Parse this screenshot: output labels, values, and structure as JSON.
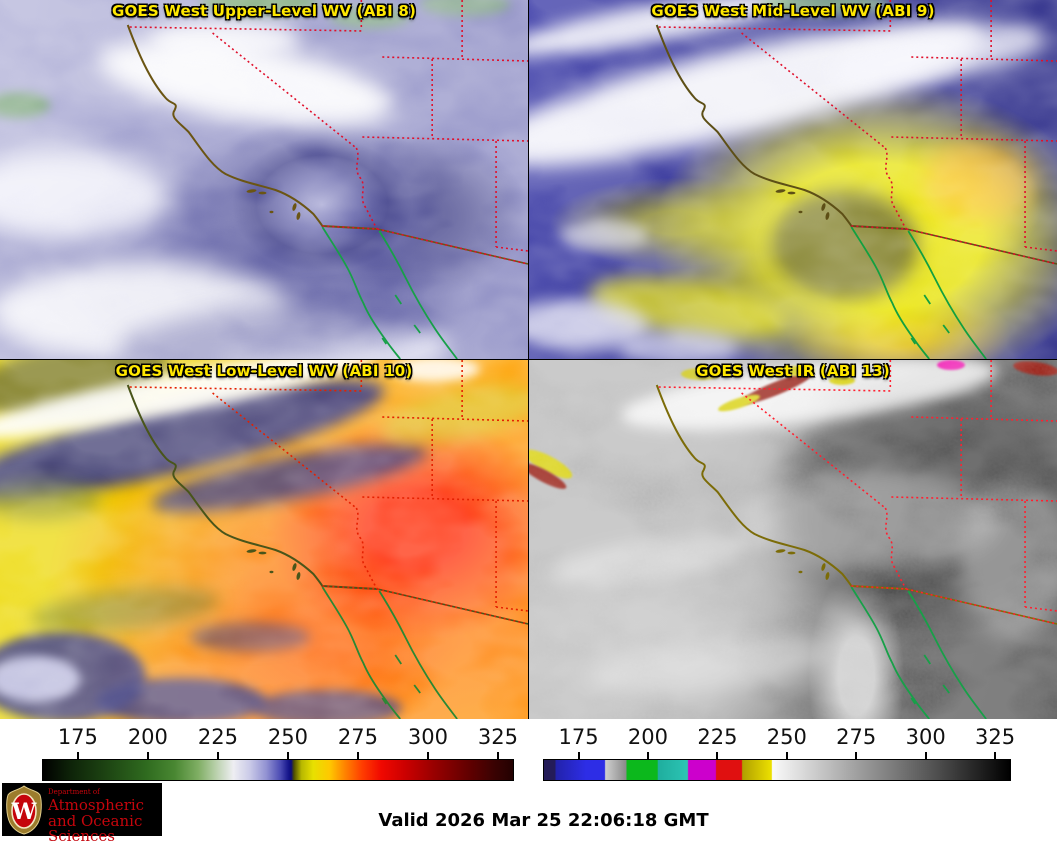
{
  "panels": [
    {
      "title": "GOES West Upper-Level WV (ABI 8)"
    },
    {
      "title": "GOES West Mid-Level WV (ABI 9)"
    },
    {
      "title": "GOES West Low-Level WV (ABI 10)"
    },
    {
      "title": "GOES West IR (ABI 13)"
    }
  ],
  "colorbars": [
    {
      "name": "water-vapor-scale",
      "ticks": [
        "175",
        "200",
        "225",
        "250",
        "275",
        "300",
        "325"
      ],
      "colors_left_to_right": [
        "#000000",
        "#1e4613",
        "#498732",
        "#bcd2af",
        "#eeeef2",
        "#9292d2",
        "#16168c",
        "#b8b800",
        "#ffc800",
        "#ff3c00",
        "#cc0000",
        "#660000",
        "#230101"
      ]
    },
    {
      "name": "ir-scale",
      "ticks": [
        "175",
        "200",
        "225",
        "250",
        "275",
        "300",
        "325"
      ],
      "colors_left_to_right": [
        "#241c58",
        "#2d2de6",
        "#b0b0b0",
        "#0cb81c",
        "#2cc4b4",
        "#cc00cc",
        "#e01010",
        "#e8dc00",
        "#fafafa",
        "#888888",
        "#000000"
      ]
    }
  ],
  "footer": {
    "valid_time": "Valid 2026 Mar 25 22:06:18 GMT"
  },
  "logo": {
    "department": "Department of",
    "line1": "Atmospheric",
    "line2": "and Oceanic Sciences",
    "monogram": "W"
  },
  "colors": {
    "title_yellow": "#ffe800",
    "state_border_red": "#e0102c",
    "coastline_olive": "#6b5513",
    "baja_green": "#17a048",
    "uw_crimson": "#c5050c"
  }
}
